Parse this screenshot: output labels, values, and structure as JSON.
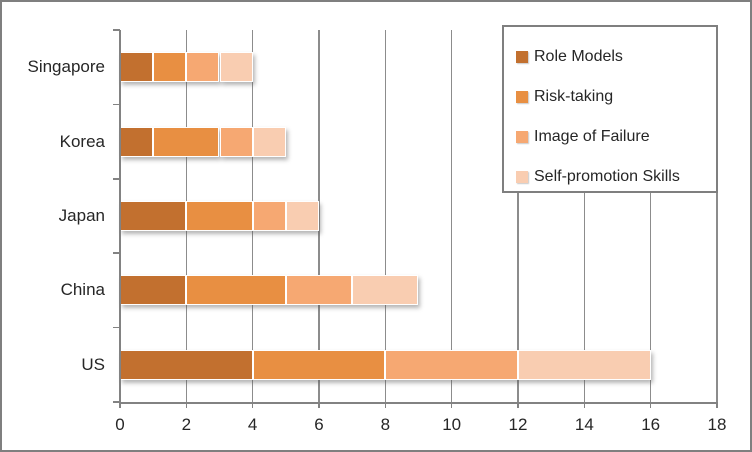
{
  "chart_data": {
    "type": "bar",
    "orientation": "horizontal",
    "stacked": true,
    "title": "",
    "xlabel": "",
    "ylabel": "",
    "categories": [
      "Singapore",
      "Korea",
      "Japan",
      "China",
      "US"
    ],
    "series": [
      {
        "name": "Role Models",
        "color": "#c2702f",
        "values": [
          1,
          1,
          2,
          2,
          4
        ]
      },
      {
        "name": "Risk-taking",
        "color": "#e88f42",
        "values": [
          1,
          2,
          2,
          3,
          4
        ]
      },
      {
        "name": "Image of Failure",
        "color": "#f6a872",
        "values": [
          1,
          1,
          1,
          2,
          4
        ]
      },
      {
        "name": "Self-promotion Skills",
        "color": "#f9cdb1",
        "values": [
          1,
          1,
          1,
          2,
          4
        ]
      }
    ],
    "totals": {
      "Singapore": 4,
      "Korea": 5,
      "Japan": 6,
      "China": 9,
      "US": 16
    },
    "x_ticks": [
      0,
      2,
      4,
      6,
      8,
      10,
      12,
      14,
      16,
      18
    ],
    "xlim": [
      0,
      18
    ],
    "grid": "vertical",
    "gridline_color": "#8c8c8c",
    "legend_position": "top-right",
    "frame_border_color": "#7f7f7f"
  }
}
